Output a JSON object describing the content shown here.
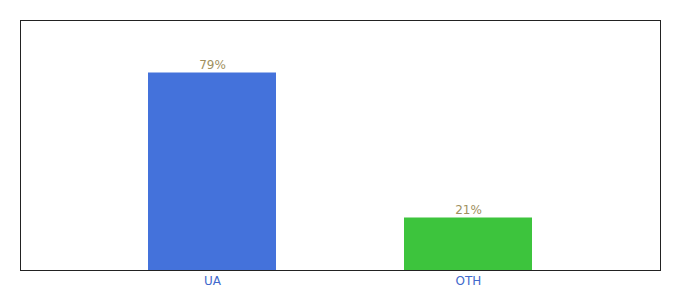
{
  "chart_data": {
    "type": "bar",
    "categories": [
      "UA",
      "OTH"
    ],
    "values": [
      79,
      21
    ],
    "value_labels": [
      "79%",
      "21%"
    ],
    "colors": [
      "#4472db",
      "#3dc43d"
    ],
    "ylim": [
      0,
      100
    ],
    "data_labels": true,
    "tick_labels": "x"
  }
}
